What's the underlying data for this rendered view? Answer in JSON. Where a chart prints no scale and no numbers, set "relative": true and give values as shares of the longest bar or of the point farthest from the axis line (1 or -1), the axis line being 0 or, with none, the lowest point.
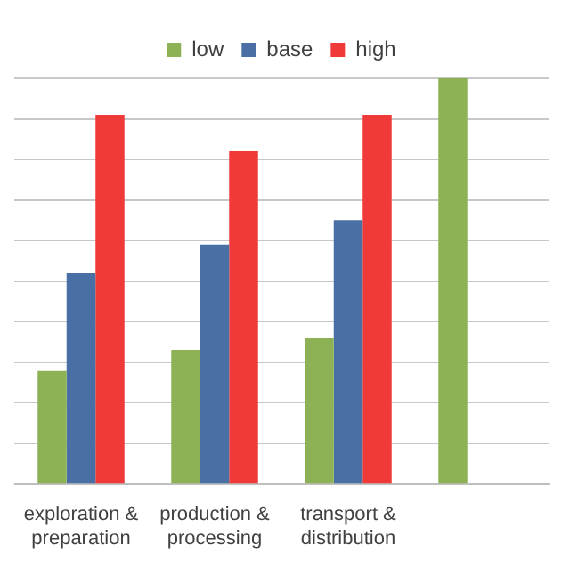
{
  "chart_data": {
    "type": "bar",
    "relative": true,
    "grid": "y",
    "legend": "top",
    "categories": [
      "exploration & preparation",
      "production & processing",
      "transport & distribution",
      null
    ],
    "series": [
      {
        "name": "low",
        "color": "#8db255",
        "values": [
          0.28,
          0.33,
          0.36,
          1
        ]
      },
      {
        "name": "base",
        "color": "#4a6fa5",
        "values": [
          0.52,
          0.59,
          0.65,
          null
        ]
      },
      {
        "name": "high",
        "color": "#f03a3a",
        "values": [
          0.91,
          0.82,
          0.91,
          null
        ]
      }
    ]
  }
}
